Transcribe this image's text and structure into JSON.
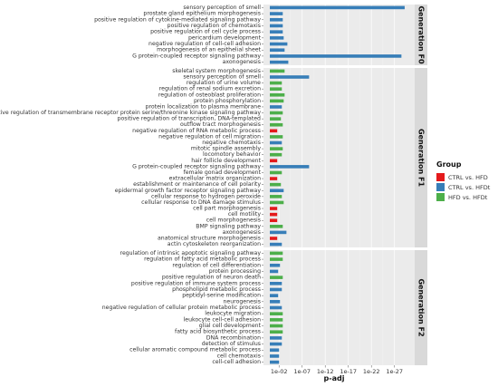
{
  "chart_data": {
    "type": "bar",
    "orientation": "horizontal",
    "xlabel": "p-adj",
    "x_scale": "log",
    "x_ticks": [
      "1e-02",
      "1e-07",
      "1e-12",
      "1e-17",
      "1e-22",
      "1e-27"
    ],
    "x_tick_exponents": [
      2,
      7,
      12,
      17,
      22,
      27
    ],
    "x_range_exponent": [
      0,
      30
    ],
    "grid": true,
    "legend": {
      "title": "Group",
      "placement": "right",
      "entries": [
        {
          "name": "CTRL vs. HFD",
          "color": "#e41a1c"
        },
        {
          "name": "CTRL vs. HFDt",
          "color": "#377eb8"
        },
        {
          "name": "HFD vs. HFDt",
          "color": "#4daf4a"
        }
      ]
    },
    "panels": [
      {
        "name": "Generation F0",
        "bars": [
          {
            "term": "sensory perception of smell",
            "group": "CTRL vs. HFDt",
            "neg_log10_padj": 29.2
          },
          {
            "term": "prostate gland epithelium morphogenesis",
            "group": "CTRL vs. HFDt",
            "neg_log10_padj": 2.8
          },
          {
            "term": "positive regulation of cytokine-mediated signaling pathway",
            "group": "CTRL vs. HFDt",
            "neg_log10_padj": 2.8
          },
          {
            "term": "positive regulation of chemotaxis",
            "group": "CTRL vs. HFDt",
            "neg_log10_padj": 2.8
          },
          {
            "term": "positive regulation of cell cycle process",
            "group": "CTRL vs. HFDt",
            "neg_log10_padj": 2.8
          },
          {
            "term": "pericardium development",
            "group": "CTRL vs. HFDt",
            "neg_log10_padj": 3.0
          },
          {
            "term": "negative regulation of cell-cell adhesion",
            "group": "CTRL vs. HFDt",
            "neg_log10_padj": 3.8
          },
          {
            "term": "morphogenesis of an epithelial sheet",
            "group": "CTRL vs. HFDt",
            "neg_log10_padj": 3.2
          },
          {
            "term": "G protein-coupled receptor signaling pathway",
            "group": "CTRL vs. HFDt",
            "neg_log10_padj": 28.5
          },
          {
            "term": "axonogenesis",
            "group": "CTRL vs. HFDt",
            "neg_log10_padj": 4.0
          }
        ]
      },
      {
        "name": "Generation F1",
        "bars": [
          {
            "term": "skeletal system morphogenesis",
            "group": "HFD vs. HFDt",
            "neg_log10_padj": 3.2
          },
          {
            "term": "sensory perception of smell",
            "group": "CTRL vs. HFDt",
            "neg_log10_padj": 8.5
          },
          {
            "term": "regulation of urine volume",
            "group": "HFD vs. HFDt",
            "neg_log10_padj": 2.6
          },
          {
            "term": "regulation of renal sodium excretion",
            "group": "HFD vs. HFDt",
            "neg_log10_padj": 2.6
          },
          {
            "term": "regulation of osteoblast proliferation",
            "group": "HFD vs. HFDt",
            "neg_log10_padj": 3.2
          },
          {
            "term": "protein phosphorylation",
            "group": "HFD vs. HFDt",
            "neg_log10_padj": 3.0
          },
          {
            "term": "protein localization to plasma membrane",
            "group": "CTRL vs. HFDt",
            "neg_log10_padj": 2.6
          },
          {
            "term": "positive regulation of transmembrane receptor protein serine/threonine kinase signaling pathway",
            "group": "HFD vs. HFDt",
            "neg_log10_padj": 2.8
          },
          {
            "term": "positive regulation of transcription, DNA-templated",
            "group": "HFD vs. HFDt",
            "neg_log10_padj": 2.4
          },
          {
            "term": "outflow tract morphogenesis",
            "group": "HFD vs. HFDt",
            "neg_log10_padj": 2.8
          },
          {
            "term": "negative regulation of RNA metabolic process",
            "group": "CTRL vs. HFD",
            "neg_log10_padj": 1.6
          },
          {
            "term": "negative regulation of cell migration",
            "group": "HFD vs. HFDt",
            "neg_log10_padj": 2.8
          },
          {
            "term": "negative chemotaxis",
            "group": "CTRL vs. HFDt",
            "neg_log10_padj": 2.6
          },
          {
            "term": "mitotic spindle assembly",
            "group": "HFD vs. HFDt",
            "neg_log10_padj": 2.8
          },
          {
            "term": "locomotory behavior",
            "group": "HFD vs. HFDt",
            "neg_log10_padj": 2.6
          },
          {
            "term": "hair follicle development",
            "group": "CTRL vs. HFD",
            "neg_log10_padj": 1.6
          },
          {
            "term": "G protein-coupled receptor signaling pathway",
            "group": "CTRL vs. HFDt",
            "neg_log10_padj": 8.5
          },
          {
            "term": "female gonad development",
            "group": "HFD vs. HFDt",
            "neg_log10_padj": 2.6
          },
          {
            "term": "extracellular matrix organization",
            "group": "CTRL vs. HFD",
            "neg_log10_padj": 1.6
          },
          {
            "term": "establishment or maintenance of cell polarity",
            "group": "HFD vs. HFDt",
            "neg_log10_padj": 2.4
          },
          {
            "term": "epidermal growth factor receptor signaling pathway",
            "group": "CTRL vs. HFDt",
            "neg_log10_padj": 3.0
          },
          {
            "term": "cellular response to hydrogen peroxide",
            "group": "HFD vs. HFDt",
            "neg_log10_padj": 2.6
          },
          {
            "term": "cellular response to DNA damage stimulus",
            "group": "HFD vs. HFDt",
            "neg_log10_padj": 3.0
          },
          {
            "term": "cell part morphogenesis",
            "group": "CTRL vs. HFD",
            "neg_log10_padj": 1.6
          },
          {
            "term": "cell motility",
            "group": "CTRL vs. HFD",
            "neg_log10_padj": 1.6
          },
          {
            "term": "cell morphogenesis",
            "group": "CTRL vs. HFD",
            "neg_log10_padj": 1.6
          },
          {
            "term": "BMP signaling pathway",
            "group": "HFD vs. HFDt",
            "neg_log10_padj": 2.8
          },
          {
            "term": "axonogenesis",
            "group": "CTRL vs. HFDt",
            "neg_log10_padj": 3.6
          },
          {
            "term": "anatomical structure morphogenesis",
            "group": "CTRL vs. HFD",
            "neg_log10_padj": 1.6
          },
          {
            "term": "actin cytoskeleton reorganization",
            "group": "CTRL vs. HFDt",
            "neg_log10_padj": 2.6
          }
        ]
      },
      {
        "name": "Generation F2",
        "bars": [
          {
            "term": "regulation of intrinsic apoptotic signaling pathway",
            "group": "HFD vs. HFDt",
            "neg_log10_padj": 2.8
          },
          {
            "term": "regulation of fatty acid metabolic process",
            "group": "HFD vs. HFDt",
            "neg_log10_padj": 2.8
          },
          {
            "term": "regulation of cell differentiation",
            "group": "CTRL vs. HFDt",
            "neg_log10_padj": 2.2
          },
          {
            "term": "protein processing",
            "group": "CTRL vs. HFDt",
            "neg_log10_padj": 1.8
          },
          {
            "term": "positive regulation of neuron death",
            "group": "HFD vs. HFDt",
            "neg_log10_padj": 2.8
          },
          {
            "term": "positive regulation of immune system process",
            "group": "CTRL vs. HFDt",
            "neg_log10_padj": 2.6
          },
          {
            "term": "phospholipid metabolic process",
            "group": "CTRL vs. HFDt",
            "neg_log10_padj": 2.6
          },
          {
            "term": "peptidyl-serine modification",
            "group": "CTRL vs. HFDt",
            "neg_log10_padj": 1.8
          },
          {
            "term": "neurogenesis",
            "group": "CTRL vs. HFDt",
            "neg_log10_padj": 2.2
          },
          {
            "term": "negative regulation of cellular protein metabolic process",
            "group": "CTRL vs. HFDt",
            "neg_log10_padj": 2.6
          },
          {
            "term": "leukocyte migration",
            "group": "HFD vs. HFDt",
            "neg_log10_padj": 2.8
          },
          {
            "term": "leukocyte cell-cell adhesion",
            "group": "HFD vs. HFDt",
            "neg_log10_padj": 2.8
          },
          {
            "term": "glial cell development",
            "group": "HFD vs. HFDt",
            "neg_log10_padj": 2.8
          },
          {
            "term": "fatty acid biosynthetic process",
            "group": "HFD vs. HFDt",
            "neg_log10_padj": 2.8
          },
          {
            "term": "DNA recombination",
            "group": "CTRL vs. HFDt",
            "neg_log10_padj": 2.6
          },
          {
            "term": "detection of stimulus",
            "group": "CTRL vs. HFDt",
            "neg_log10_padj": 2.6
          },
          {
            "term": "cellular aromatic compound metabolic process",
            "group": "CTRL vs. HFDt",
            "neg_log10_padj": 2.0
          },
          {
            "term": "cell chemotaxis",
            "group": "CTRL vs. HFDt",
            "neg_log10_padj": 2.0
          },
          {
            "term": "cell-cell adhesion",
            "group": "CTRL vs. HFDt",
            "neg_log10_padj": 2.0
          }
        ]
      }
    ]
  }
}
